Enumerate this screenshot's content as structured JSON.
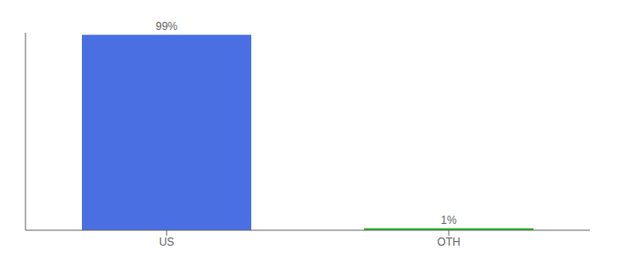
{
  "chart_data": {
    "type": "bar",
    "categories": [
      "US",
      "OTH"
    ],
    "values": [
      99,
      1
    ],
    "value_labels": [
      "99%",
      "1%"
    ],
    "colors": [
      "#4A6FE3",
      "#2DB52D"
    ],
    "ylim": [
      0,
      100
    ],
    "yticks": [],
    "data_labels": true,
    "tick_labels": "x",
    "grid": false
  }
}
